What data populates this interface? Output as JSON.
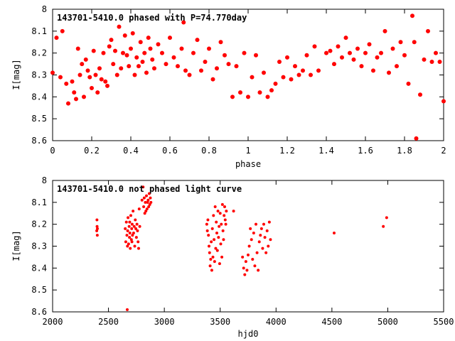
{
  "chart_data": [
    {
      "type": "scatter",
      "title": "143701-5410.0 phased with P=74.770day",
      "xlabel": "phase",
      "ylabel": "I[mag]",
      "xlim": [
        0,
        2
      ],
      "ylim": [
        8.6,
        8.0
      ],
      "y_inverted": true,
      "xticks": [
        "0",
        "0.2",
        "0.4",
        "0.6",
        "0.8",
        "1",
        "1.2",
        "1.4",
        "1.6",
        "1.8",
        "2"
      ],
      "yticks": [
        "8",
        "8.1",
        "8.2",
        "8.3",
        "8.4",
        "8.5",
        "8.6"
      ],
      "grid": false,
      "marker_color": "#ff0000",
      "series": [
        {
          "x": [
            0.0,
            0.02,
            0.04,
            0.05,
            0.07,
            0.08,
            0.1,
            0.11,
            0.12,
            0.13,
            0.14,
            0.15,
            0.16,
            0.17,
            0.18,
            0.19,
            0.2,
            0.21,
            0.22,
            0.23,
            0.24,
            0.25,
            0.26,
            0.27,
            0.28,
            0.29,
            0.3,
            0.31,
            0.32,
            0.33,
            0.34,
            0.35,
            0.36,
            0.37,
            0.38,
            0.39,
            0.4,
            0.41,
            0.42,
            0.43,
            0.44,
            0.45,
            0.46,
            0.47,
            0.48,
            0.49,
            0.5,
            0.51,
            0.52,
            0.54,
            0.56,
            0.58,
            0.6,
            0.62,
            0.64,
            0.66,
            0.67,
            0.68,
            0.7,
            0.72,
            0.74,
            0.76,
            0.78,
            0.8,
            0.82,
            0.84,
            0.86,
            0.88,
            0.9,
            0.92,
            0.94,
            0.96,
            0.98,
            1.0,
            1.02,
            1.04,
            1.06,
            1.08,
            1.1,
            1.12,
            1.14,
            1.16,
            1.18,
            1.2,
            1.22,
            1.24,
            1.26,
            1.28,
            1.3,
            1.32,
            1.34,
            1.36,
            1.4,
            1.42,
            1.44,
            1.46,
            1.48,
            1.5,
            1.52,
            1.54,
            1.56,
            1.58,
            1.6,
            1.62,
            1.64,
            1.66,
            1.68,
            1.7,
            1.72,
            1.74,
            1.76,
            1.78,
            1.8,
            1.82,
            1.84,
            1.85,
            1.86,
            1.88,
            1.9,
            1.92,
            1.94,
            1.96,
            1.98,
            2.0
          ],
          "y": [
            8.29,
            8.13,
            8.31,
            8.1,
            8.34,
            8.43,
            8.33,
            8.38,
            8.41,
            8.18,
            8.3,
            8.25,
            8.4,
            8.23,
            8.28,
            8.31,
            8.36,
            8.19,
            8.3,
            8.38,
            8.27,
            8.32,
            8.2,
            8.33,
            8.35,
            8.17,
            8.14,
            8.25,
            8.19,
            8.3,
            8.08,
            8.27,
            8.2,
            8.12,
            8.21,
            8.26,
            8.18,
            8.11,
            8.3,
            8.22,
            8.26,
            8.15,
            8.24,
            8.2,
            8.29,
            8.13,
            8.18,
            8.23,
            8.27,
            8.16,
            8.2,
            8.25,
            8.13,
            8.22,
            8.26,
            8.18,
            8.06,
            8.28,
            8.3,
            8.2,
            8.14,
            8.28,
            8.24,
            8.18,
            8.32,
            8.27,
            8.15,
            8.21,
            8.25,
            8.4,
            8.26,
            8.38,
            8.2,
            8.4,
            8.31,
            8.21,
            8.38,
            8.29,
            8.4,
            8.37,
            8.34,
            8.24,
            8.31,
            8.22,
            8.32,
            8.26,
            8.3,
            8.28,
            8.21,
            8.3,
            8.17,
            8.28,
            8.2,
            8.19,
            8.25,
            8.17,
            8.22,
            8.13,
            8.2,
            8.23,
            8.18,
            8.26,
            8.2,
            8.16,
            8.28,
            8.22,
            8.2,
            8.1,
            8.29,
            8.18,
            8.26,
            8.15,
            8.21,
            8.34,
            8.03,
            8.15,
            8.59,
            8.39,
            8.23,
            8.1,
            8.24,
            8.2,
            8.24,
            8.42
          ]
        }
      ]
    },
    {
      "type": "scatter",
      "title": "143701-5410.0 not phased light curve",
      "xlabel": "hjd0",
      "ylabel": "I[mag]",
      "xlim": [
        2000,
        5500
      ],
      "ylim": [
        8.6,
        8.0
      ],
      "y_inverted": true,
      "xticks": [
        "2000",
        "2500",
        "3000",
        "3500",
        "4000",
        "4500",
        "5000",
        "5500"
      ],
      "yticks": [
        "8",
        "8.1",
        "8.2",
        "8.3",
        "8.4",
        "8.5",
        "8.6"
      ],
      "grid": false,
      "marker_color": "#ff0000",
      "series": [
        {
          "x": [
            2395,
            2397,
            2398,
            2400,
            2401,
            2650,
            2655,
            2660,
            2665,
            2668,
            2670,
            2672,
            2675,
            2680,
            2685,
            2688,
            2690,
            2692,
            2695,
            2700,
            2705,
            2708,
            2710,
            2712,
            2715,
            2720,
            2725,
            2730,
            2735,
            2740,
            2745,
            2750,
            2755,
            2760,
            2765,
            2770,
            2775,
            2780,
            2800,
            2810,
            2815,
            2820,
            2825,
            2830,
            2835,
            2840,
            2845,
            2850,
            2855,
            2860,
            2865,
            2870,
            2875,
            2880,
            3380,
            3385,
            3390,
            3395,
            3400,
            3405,
            3410,
            3415,
            3420,
            3425,
            3430,
            3435,
            3440,
            3445,
            3450,
            3455,
            3460,
            3465,
            3470,
            3475,
            3480,
            3485,
            3490,
            3495,
            3500,
            3505,
            3510,
            3515,
            3520,
            3525,
            3530,
            3535,
            3540,
            3545,
            3550,
            3555,
            3620,
            3700,
            3710,
            3720,
            3730,
            3740,
            3750,
            3760,
            3770,
            3780,
            3790,
            3800,
            3810,
            3820,
            3830,
            3840,
            3850,
            3860,
            3870,
            3880,
            3890,
            3900,
            3910,
            3920,
            3930,
            3940,
            3950,
            4520,
            4960,
            4990
          ],
          "y": [
            8.23,
            8.18,
            8.21,
            8.25,
            8.22,
            8.22,
            8.28,
            8.19,
            8.25,
            8.59,
            8.3,
            8.23,
            8.17,
            8.29,
            8.21,
            8.26,
            8.19,
            8.24,
            8.31,
            8.16,
            8.27,
            8.22,
            8.28,
            8.2,
            8.25,
            8.14,
            8.24,
            8.21,
            8.3,
            8.18,
            8.22,
            8.26,
            8.2,
            8.23,
            8.28,
            8.31,
            8.13,
            8.21,
            8.09,
            8.03,
            8.12,
            8.08,
            8.15,
            8.1,
            8.14,
            8.07,
            8.13,
            8.1,
            8.09,
            8.12,
            8.06,
            8.11,
            8.08,
            8.1,
            8.2,
            8.23,
            8.18,
            8.25,
            8.3,
            8.33,
            8.39,
            8.36,
            8.28,
            8.41,
            8.22,
            8.35,
            8.16,
            8.27,
            8.37,
            8.12,
            8.31,
            8.19,
            8.24,
            8.32,
            8.14,
            8.26,
            8.21,
            8.38,
            8.15,
            8.29,
            8.2,
            8.35,
            8.11,
            8.23,
            8.27,
            8.16,
            8.12,
            8.18,
            8.2,
            8.14,
            8.14,
            8.35,
            8.4,
            8.43,
            8.37,
            8.41,
            8.34,
            8.3,
            8.22,
            8.27,
            8.36,
            8.24,
            8.39,
            8.2,
            8.33,
            8.41,
            8.28,
            8.25,
            8.22,
            8.31,
            8.2,
            8.26,
            8.33,
            8.23,
            8.3,
            8.19,
            8.27,
            8.24,
            8.21,
            8.17
          ]
        }
      ]
    }
  ]
}
